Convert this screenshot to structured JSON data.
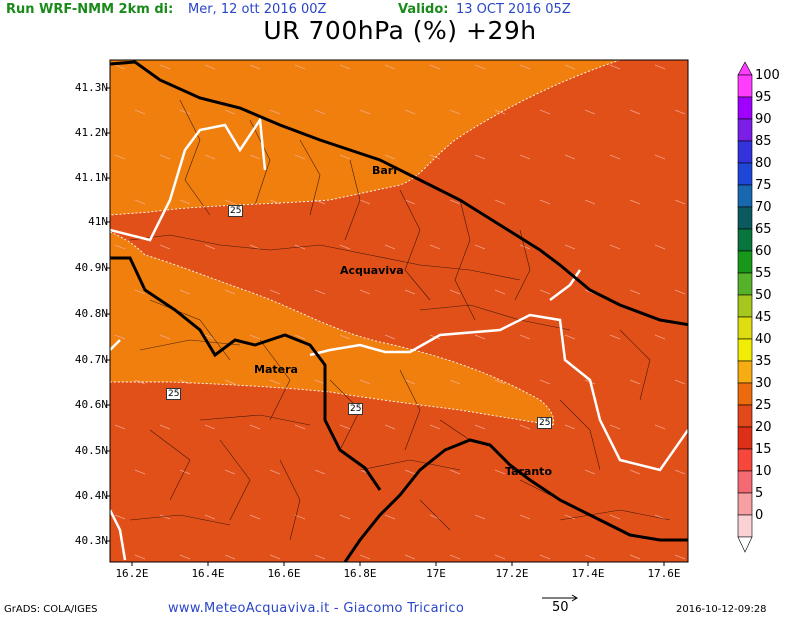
{
  "header": {
    "run_label": "Run WRF-NMM 2km di:",
    "run_date": "Mer, 12 ott 2016 00Z",
    "valid_label": "Valido:",
    "valid_date": "13 OCT 2016 05Z"
  },
  "title": "UR 700hPa (%) +29h",
  "axes": {
    "y_labels": [
      "41.3N",
      "41.2N",
      "41.1N",
      "41N",
      "40.9N",
      "40.8N",
      "40.7N",
      "40.6N",
      "40.5N",
      "40.4N",
      "40.3N"
    ],
    "x_labels": [
      "16.2E",
      "16.4E",
      "16.6E",
      "16.8E",
      "17E",
      "17.2E",
      "17.4E",
      "17.6E"
    ]
  },
  "colorbar": {
    "labels": [
      "100",
      "95",
      "90",
      "85",
      "80",
      "75",
      "70",
      "65",
      "60",
      "55",
      "50",
      "45",
      "40",
      "35",
      "30",
      "25",
      "20",
      "15",
      "10",
      "5",
      "0"
    ],
    "colors": [
      "#ff3cff",
      "#a000ff",
      "#7b1fe6",
      "#3333dd",
      "#1e47d8",
      "#1868b0",
      "#0b5a60",
      "#07753c",
      "#18981a",
      "#56b22a",
      "#a6c81e",
      "#dddd12",
      "#f2ed04",
      "#f6ad14",
      "#ed6b0c",
      "#e1481a",
      "#dd3018",
      "#f7473c",
      "#f46a72",
      "#f7a0a4",
      "#fad2d6"
    ]
  },
  "map": {
    "fill_colors": {
      "band_30": "#f07f0e",
      "band_25": "#e2501a"
    },
    "contour_label": "25",
    "cities": [
      "Bari",
      "Acquaviva",
      "Matera",
      "Taranto"
    ]
  },
  "footer": {
    "left": "GrADS: COLA/IGES",
    "center": "www.MeteoAcquaviva.it - Giacomo Tricarico",
    "vector_ref": "50",
    "right": "2016-10-12-09:28"
  }
}
